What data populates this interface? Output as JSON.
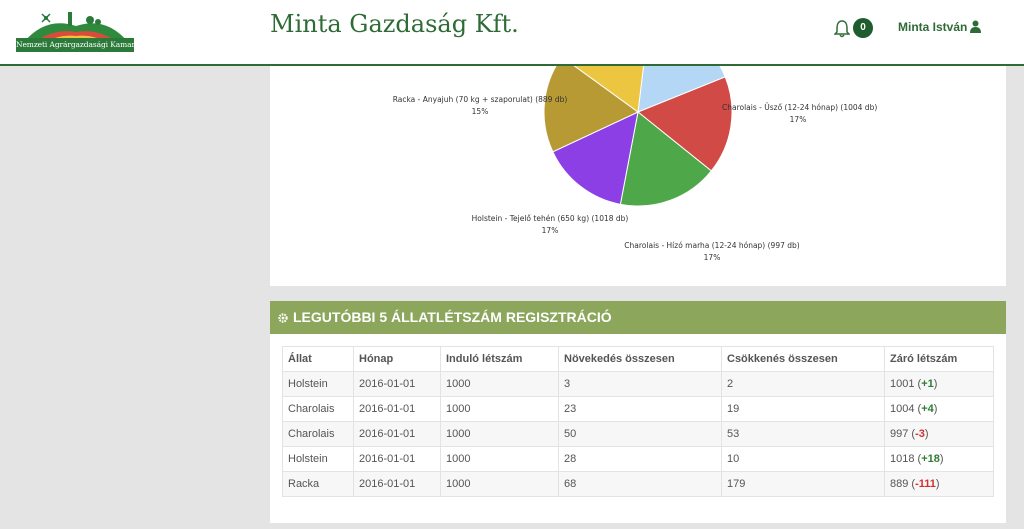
{
  "header": {
    "logo_text": "Nemzeti Agrárgazdasági Kamara",
    "company": "Minta Gazdaság Kft.",
    "notification_count": "0",
    "user_name": "Minta István"
  },
  "chart_data": {
    "type": "pie",
    "slices": [
      {
        "label": "Charolais - Üsző (12-24 hónap) (1004 db)",
        "percent_label": "17%",
        "value": 1004,
        "color": "#b3d7f5"
      },
      {
        "label": "Charolais - Hízó marha (12-24 hónap) (997 db)",
        "percent_label": "17%",
        "value": 997,
        "color": "#d14a45"
      },
      {
        "label": "Holstein - Tejelő tehén (650 kg) (1018 db)",
        "percent_label": "17%",
        "value": 1018,
        "color": "#4ea84a"
      },
      {
        "label": "Racka - Anyajuh (70 kg + szaporulat) (889 db)",
        "percent_label": "15%",
        "value": 889,
        "color": "#8d3fe6"
      },
      {
        "label": "",
        "percent_label": "",
        "value": 1001,
        "color": "#b89a35"
      },
      {
        "label": "",
        "percent_label": "",
        "value": 1000,
        "color": "#ecc640"
      }
    ]
  },
  "table": {
    "title": "LEGUTÓBBI 5 ÁLLATLÉTSZÁM REGISZTRÁCIÓ",
    "columns": [
      "Állat",
      "Hónap",
      "Induló létszám",
      "Növekedés összesen",
      "Csökkenés összesen",
      "Záró létszám"
    ],
    "rows": [
      {
        "animal": "Holstein",
        "month": "2016-01-01",
        "start": "1000",
        "increase": "3",
        "decrease": "2",
        "closing": "1001",
        "delta": "+1",
        "delta_sign": "pos"
      },
      {
        "animal": "Charolais",
        "month": "2016-01-01",
        "start": "1000",
        "increase": "23",
        "decrease": "19",
        "closing": "1004",
        "delta": "+4",
        "delta_sign": "pos"
      },
      {
        "animal": "Charolais",
        "month": "2016-01-01",
        "start": "1000",
        "increase": "50",
        "decrease": "53",
        "closing": "997",
        "delta": "-3",
        "delta_sign": "neg"
      },
      {
        "animal": "Holstein",
        "month": "2016-01-01",
        "start": "1000",
        "increase": "28",
        "decrease": "10",
        "closing": "1018",
        "delta": "+18",
        "delta_sign": "pos"
      },
      {
        "animal": "Racka",
        "month": "2016-01-01",
        "start": "1000",
        "increase": "68",
        "decrease": "179",
        "closing": "889",
        "delta": "-111",
        "delta_sign": "neg"
      }
    ]
  },
  "colors": {
    "brand_green": "#2e6b37",
    "panel_header": "#8ca75c",
    "positive": "#2f7d32",
    "negative": "#d32f2f"
  }
}
